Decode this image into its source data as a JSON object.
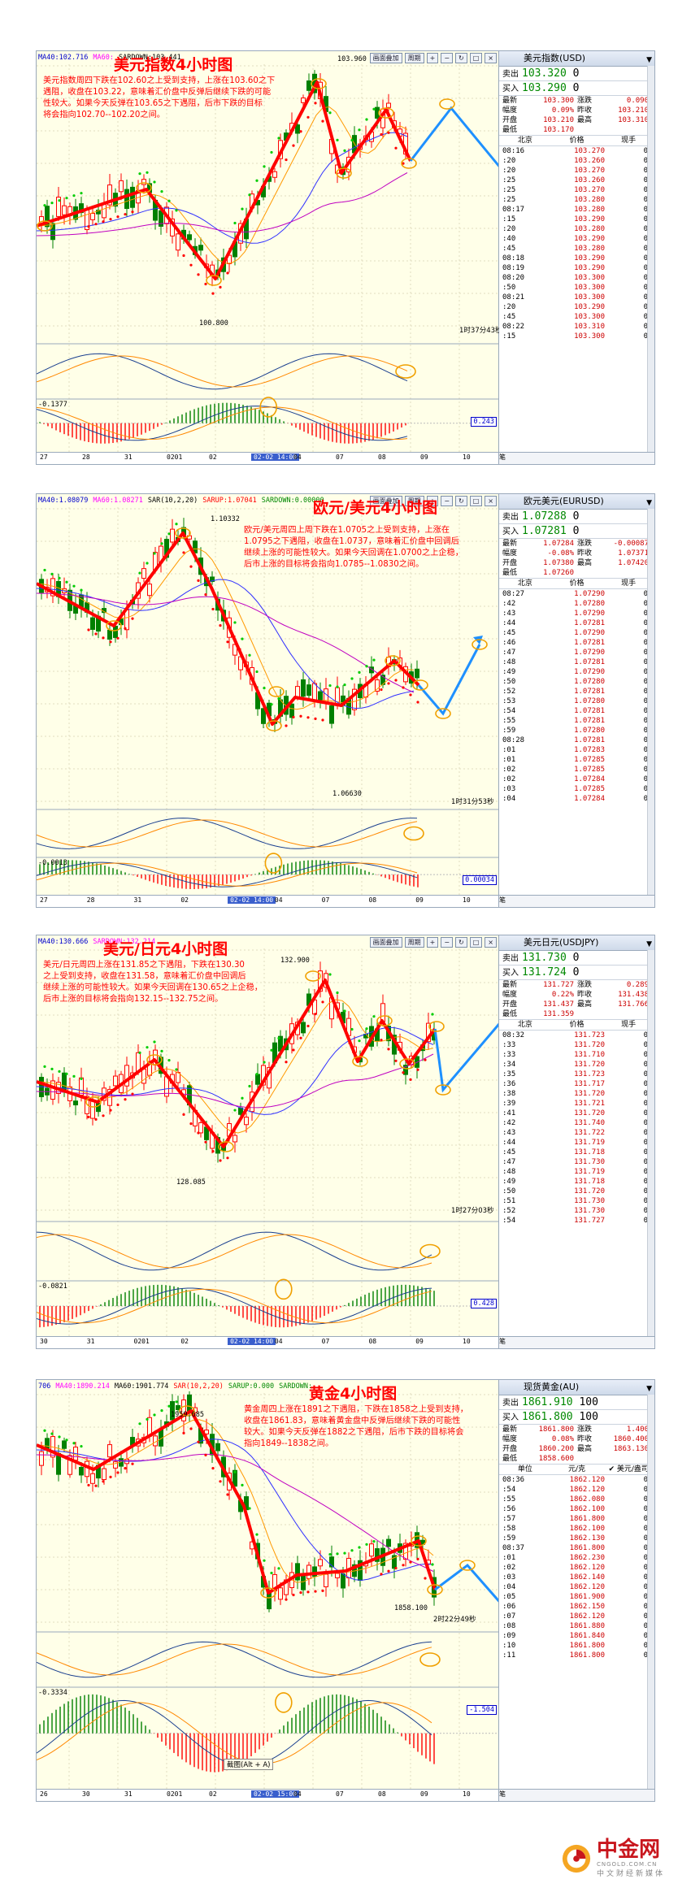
{
  "panels": [
    {
      "id": "usd",
      "title": "美元指数4小时图",
      "topbar": [
        "MA40:102.716",
        "MA60:",
        "SARDOWN:103.441"
      ],
      "note": "美元指数周四下跌在102.60之上受到支持，上涨在103.60之下\n遇阻，收盘在103.22，意味着汇价盘中反弹后继续下跌的可能\n性较大。如果今天反弹在103.65之下遇阻，后市下跌的目标\n将会指向102.70--102.20之间。",
      "high_label": "103.960",
      "low_label": "100.800",
      "countdown": "1时37分43秒",
      "ind_label": "-0.1377",
      "ind_val": "0.243",
      "xaxis": [
        "27",
        "28",
        "31",
        "0201",
        "02",
        "02-02 14:00",
        "04",
        "07",
        "08",
        "09",
        "10"
      ],
      "btns": [
        "画面叠加",
        "周期"
      ],
      "quote": {
        "name": "美元指数(USD)",
        "sell_label": "卖出",
        "sell": "103.320",
        "sell_size": "0",
        "buy_label": "买入",
        "buy": "103.290",
        "buy_size": "0",
        "stats": [
          [
            "最新",
            "103.300",
            "涨跌",
            "0.090"
          ],
          [
            "幅度",
            "0.09%",
            "昨收",
            "103.210"
          ],
          [
            "开盘",
            "103.210",
            "最高",
            "103.310"
          ],
          [
            "最低",
            "103.170",
            "",
            ""
          ]
        ],
        "head": [
          "北京",
          "价格",
          "现手"
        ],
        "ticks": [
          [
            "08:16",
            "103.270",
            "0"
          ],
          [
            ":20",
            "103.260",
            "0"
          ],
          [
            ":20",
            "103.270",
            "0"
          ],
          [
            ":25",
            "103.260",
            "0"
          ],
          [
            ":25",
            "103.270",
            "0"
          ],
          [
            ":25",
            "103.280",
            "0"
          ],
          [
            "08:17",
            "103.280",
            "0"
          ],
          [
            ":15",
            "103.290",
            "0"
          ],
          [
            ":20",
            "103.280",
            "0"
          ],
          [
            ":40",
            "103.290",
            "0"
          ],
          [
            ":45",
            "103.280",
            "0"
          ],
          [
            "08:18",
            "103.290",
            "0"
          ],
          [
            "08:19",
            "103.290",
            "0"
          ],
          [
            "08:20",
            "103.300",
            "0"
          ],
          [
            ":50",
            "103.300",
            "0"
          ],
          [
            "08:21",
            "103.300",
            "0"
          ],
          [
            ":20",
            "103.290",
            "0"
          ],
          [
            ":45",
            "103.300",
            "0"
          ],
          [
            "08:22",
            "103.310",
            "0"
          ],
          [
            ":15",
            "103.300",
            "0"
          ]
        ],
        "foot": "笔"
      }
    },
    {
      "id": "eur",
      "title": "欧元/美元4小时图",
      "topbar": [
        "MA40:1.08079",
        "MA60:1.08271",
        "SAR(10,2,20)",
        "SARUP:1.07041",
        "SARDOWN:0.00000"
      ],
      "note": "欧元/美元周四上周下跌在1.0705之上受到支持，上涨在\n1.0795之下遇阻，收盘在1.0737，意味着汇价盘中回调后\n继续上涨的可能性较大。如果今天回调在1.0700之上企稳，\n后市上涨的目标将会指向1.0785--1.0830之间。",
      "high_label": "1.10332",
      "low_label": "1.06630",
      "countdown": "1时31分53秒",
      "ind_label": "-0.0013",
      "ind_val": "0.00034",
      "xaxis": [
        "27",
        "28",
        "31",
        "02",
        "02-02 14:00",
        "04",
        "07",
        "08",
        "09",
        "10"
      ],
      "btns": [
        "画面叠加",
        "周期"
      ],
      "quote": {
        "name": "欧元美元(EURUSD)",
        "sell_label": "卖出",
        "sell": "1.07288",
        "sell_size": "0",
        "buy_label": "买入",
        "buy": "1.07281",
        "buy_size": "0",
        "stats": [
          [
            "最新",
            "1.07284",
            "涨跌",
            "-0.00087"
          ],
          [
            "幅度",
            "-0.08%",
            "昨收",
            "1.07371"
          ],
          [
            "开盘",
            "1.07380",
            "最高",
            "1.07420"
          ],
          [
            "最低",
            "1.07260",
            "",
            ""
          ]
        ],
        "head": [
          "北京",
          "价格",
          "现手"
        ],
        "ticks": [
          [
            "08:27",
            "1.07290",
            "0"
          ],
          [
            ":42",
            "1.07280",
            "0"
          ],
          [
            ":43",
            "1.07290",
            "0"
          ],
          [
            ":44",
            "1.07281",
            "0"
          ],
          [
            ":45",
            "1.07290",
            "0"
          ],
          [
            ":46",
            "1.07281",
            "0"
          ],
          [
            ":47",
            "1.07290",
            "0"
          ],
          [
            ":48",
            "1.07281",
            "0"
          ],
          [
            ":49",
            "1.07290",
            "0"
          ],
          [
            ":50",
            "1.07280",
            "0"
          ],
          [
            ":52",
            "1.07281",
            "0"
          ],
          [
            ":53",
            "1.07280",
            "0"
          ],
          [
            ":54",
            "1.07281",
            "0"
          ],
          [
            ":55",
            "1.07281",
            "0"
          ],
          [
            ":59",
            "1.07280",
            "0"
          ],
          [
            "08:28",
            "1.07281",
            "0"
          ],
          [
            ":01",
            "1.07283",
            "0"
          ],
          [
            ":01",
            "1.07285",
            "0"
          ],
          [
            ":02",
            "1.07285",
            "0"
          ],
          [
            ":02",
            "1.07284",
            "0"
          ],
          [
            ":03",
            "1.07285",
            "0"
          ],
          [
            ":04",
            "1.07284",
            "0"
          ]
        ],
        "foot": "笔"
      }
    },
    {
      "id": "jpy",
      "title": "美元/日元4小时图",
      "topbar": [
        "MA40:130.666",
        "SARDOWN:132.214"
      ],
      "note": "美元/日元周四上涨在131.85之下遇阻，下跌在130.30\n之上受到支持，收盘在131.58，意味着汇价盘中回调后\n继续上涨的可能性较大。如果今天回调在130.65之上企稳，\n后市上涨的目标将会指向132.15--132.75之间。",
      "high_label": "132.900",
      "low_label": "128.085",
      "countdown": "1时27分03秒",
      "ind_label": "-0.0821",
      "ind_val": "0.428",
      "xaxis": [
        "30",
        "31",
        "0201",
        "02",
        "02-02 14:00",
        "04",
        "07",
        "08",
        "09",
        "10"
      ],
      "btns": [
        "画面叠加",
        "周期"
      ],
      "quote": {
        "name": "美元日元(USDJPY)",
        "sell_label": "卖出",
        "sell": "131.730",
        "sell_size": "0",
        "buy_label": "买入",
        "buy": "131.724",
        "buy_size": "0",
        "stats": [
          [
            "最新",
            "131.727",
            "涨跌",
            "0.289"
          ],
          [
            "幅度",
            "0.22%",
            "昨收",
            "131.438"
          ],
          [
            "开盘",
            "131.437",
            "最高",
            "131.766"
          ],
          [
            "最低",
            "131.359",
            "",
            ""
          ]
        ],
        "head": [
          "北京",
          "价格",
          "现手"
        ],
        "ticks": [
          [
            "08:32",
            "131.723",
            "0"
          ],
          [
            ":33",
            "131.720",
            "0"
          ],
          [
            ":33",
            "131.710",
            "0"
          ],
          [
            ":34",
            "131.720",
            "0"
          ],
          [
            ":35",
            "131.723",
            "0"
          ],
          [
            ":36",
            "131.717",
            "0"
          ],
          [
            ":38",
            "131.720",
            "0"
          ],
          [
            ":39",
            "131.721",
            "0"
          ],
          [
            ":41",
            "131.720",
            "0"
          ],
          [
            ":42",
            "131.740",
            "0"
          ],
          [
            ":43",
            "131.722",
            "0"
          ],
          [
            ":44",
            "131.719",
            "0"
          ],
          [
            ":45",
            "131.718",
            "0"
          ],
          [
            ":47",
            "131.730",
            "0"
          ],
          [
            ":48",
            "131.719",
            "0"
          ],
          [
            ":49",
            "131.718",
            "0"
          ],
          [
            ":50",
            "131.720",
            "0"
          ],
          [
            ":51",
            "131.730",
            "0"
          ],
          [
            ":52",
            "131.730",
            "0"
          ],
          [
            ":54",
            "131.727",
            "0"
          ]
        ],
        "foot": "笔"
      }
    },
    {
      "id": "xau",
      "title": "黄金4小时图",
      "topbar": [
        "706",
        "MA40:1890.214",
        "MA60:1901.774",
        "SAR(10,2,20)",
        "SARUP:0.000",
        "SARDOWN:"
      ],
      "note": "黄金周四上涨在1891之下遇阻，下跌在1858之上受到支持，\n收盘在1861.83，意味着黄金盘中反弹后继续下跌的可能性\n较大。如果今天反弹在1882之下遇阻，后市下跌的目标将会\n指向1849--1838之间。",
      "high_label": "1959.685",
      "low_label": "1858.100",
      "countdown": "2时22分49秒",
      "ind_label": "-0.3334",
      "ind_val": "-1.504",
      "popup": "截图(Alt + A)",
      "xaxis": [
        "26",
        "30",
        "31",
        "0201",
        "02",
        "02-02 15:00",
        "04",
        "07",
        "08",
        "09",
        "10"
      ],
      "btns": [],
      "quote": {
        "name": "现货黄金(AU)",
        "sell_label": "卖出",
        "sell": "1861.910",
        "sell_size": "100",
        "buy_label": "买入",
        "buy": "1861.800",
        "buy_size": "100",
        "stats": [
          [
            "最新",
            "1861.800",
            "涨跌",
            "1.400"
          ],
          [
            "幅度",
            "0.08%",
            "昨收",
            "1860.400"
          ],
          [
            "开盘",
            "1860.200",
            "最高",
            "1863.130"
          ],
          [
            "最低",
            "1858.600",
            "",
            ""
          ]
        ],
        "head": [
          "单位",
          "元/克",
          "✔ 美元/盎司"
        ],
        "ticks": [
          [
            "08:36",
            "1862.120",
            "0"
          ],
          [
            ":54",
            "1862.120",
            "0"
          ],
          [
            ":55",
            "1862.080",
            "0"
          ],
          [
            ":56",
            "1862.100",
            "0"
          ],
          [
            ":57",
            "1861.800",
            "0"
          ],
          [
            ":58",
            "1862.100",
            "0"
          ],
          [
            ":59",
            "1862.130",
            "0"
          ],
          [
            "08:37",
            "1861.800",
            "0"
          ],
          [
            ":01",
            "1862.230",
            "0"
          ],
          [
            ":02",
            "1862.120",
            "0"
          ],
          [
            ":03",
            "1862.140",
            "0"
          ],
          [
            ":04",
            "1862.120",
            "0"
          ],
          [
            ":05",
            "1861.900",
            "0"
          ],
          [
            ":06",
            "1862.150",
            "0"
          ],
          [
            ":07",
            "1862.120",
            "0"
          ],
          [
            ":08",
            "1861.880",
            "0"
          ],
          [
            ":09",
            "1861.840",
            "0"
          ],
          [
            ":10",
            "1861.800",
            "0"
          ],
          [
            ":11",
            "1861.800",
            "0"
          ]
        ],
        "foot": "笔"
      }
    }
  ],
  "logo": {
    "name": "中金网",
    "domain": "CNGOLD.COM.CN",
    "slogan": "中文财经新媒体"
  },
  "colors": {
    "up": "#ff0000",
    "down": "#008000",
    "trend": "#ff0000",
    "projection": "#1e90ff",
    "ring": "#f0a000",
    "ma_blue": "#3030ff",
    "ma_purple": "#c000c0",
    "sar": "#00cc00"
  },
  "chart_data": [
    {
      "type": "line",
      "title": "美元指数4小时图",
      "series": [
        {
          "values": [
            102.2,
            103.0,
            101.0,
            100.8,
            103.96,
            102.9,
            103.5,
            102.6,
            103.3
          ]
        }
      ],
      "annotations": [
        "103.960",
        "100.800"
      ]
    },
    {
      "type": "line",
      "title": "欧元/美元4小时图",
      "series": [
        {
          "values": [
            1.086,
            1.081,
            1.1033,
            1.083,
            1.0663,
            1.071,
            1.07,
            1.077,
            1.073
          ]
        }
      ],
      "annotations": [
        "1.10332",
        "1.06630"
      ]
    },
    {
      "type": "line",
      "title": "美元/日元4小时图",
      "series": [
        {
          "values": [
            130.3,
            129.6,
            130.6,
            128.085,
            132.9,
            130.9,
            131.8,
            130.4,
            131.7
          ]
        }
      ],
      "annotations": [
        "132.900",
        "128.085"
      ]
    },
    {
      "type": "line",
      "title": "黄金4小时图",
      "series": [
        {
          "values": [
            1931,
            1918,
            1959.685,
            1918,
            1862,
            1877,
            1870,
            1891,
            1858.1
          ]
        }
      ],
      "annotations": [
        "1959.685",
        "1858.100"
      ]
    }
  ]
}
